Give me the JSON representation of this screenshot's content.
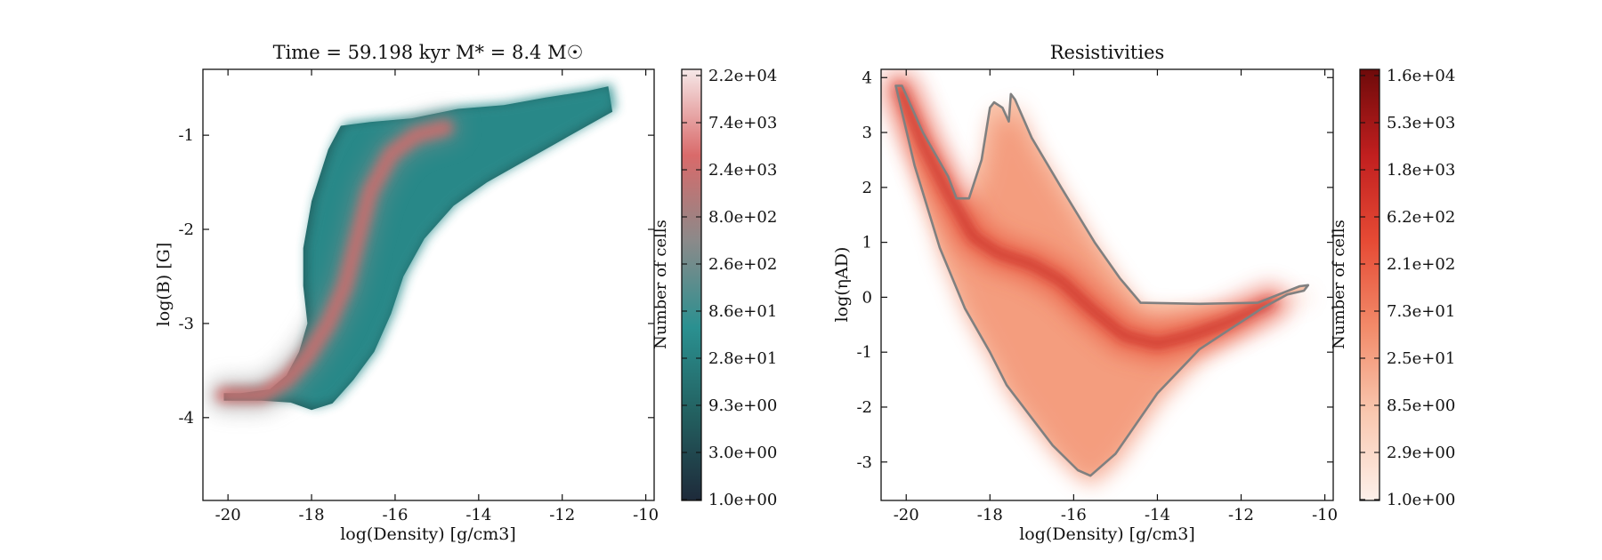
{
  "chart_data": [
    {
      "type": "heatmap",
      "title": "Time = 59.198 kyr    M* = 8.4 M☉",
      "xlabel": "log(Density) [g/cm3]",
      "ylabel": "log(B) [G]",
      "xlim": [
        -20.6,
        -9.8
      ],
      "ylim": [
        -4.88,
        -0.3
      ],
      "x_ticks": [
        -20,
        -18,
        -16,
        -14,
        -12,
        -10
      ],
      "y_ticks": [
        -4,
        -3,
        -2,
        -1
      ],
      "grid": false,
      "colorbar": {
        "label": "Number of cells",
        "ticks": [
          "1.0e+00",
          "3.0e+00",
          "9.3e+00",
          "2.8e+01",
          "8.6e+01",
          "2.6e+02",
          "8.0e+02",
          "2.4e+03",
          "7.4e+03",
          "2.2e+04"
        ],
        "colors": [
          "#1e2a3a",
          "#236060",
          "#2a9090",
          "#8a8a8a",
          "#d96a6a",
          "#f6e8e8"
        ]
      },
      "outline": [
        [
          -20.1,
          -3.74
        ],
        [
          -19.7,
          -3.74
        ],
        [
          -19.0,
          -3.7
        ],
        [
          -18.6,
          -3.55
        ],
        [
          -18.3,
          -3.3
        ],
        [
          -18.1,
          -3.0
        ],
        [
          -18.2,
          -2.6
        ],
        [
          -18.2,
          -2.2
        ],
        [
          -18.0,
          -1.7
        ],
        [
          -17.6,
          -1.15
        ],
        [
          -17.3,
          -0.9
        ],
        [
          -16.6,
          -0.86
        ],
        [
          -15.6,
          -0.82
        ],
        [
          -14.5,
          -0.72
        ],
        [
          -13.4,
          -0.68
        ],
        [
          -12.4,
          -0.6
        ],
        [
          -11.4,
          -0.53
        ],
        [
          -10.9,
          -0.48
        ],
        [
          -10.8,
          -0.75
        ],
        [
          -11.4,
          -0.9
        ],
        [
          -12.2,
          -1.1
        ],
        [
          -13.0,
          -1.3
        ],
        [
          -13.8,
          -1.5
        ],
        [
          -14.6,
          -1.75
        ],
        [
          -15.3,
          -2.1
        ],
        [
          -15.8,
          -2.5
        ],
        [
          -16.1,
          -2.9
        ],
        [
          -16.5,
          -3.3
        ],
        [
          -17.0,
          -3.6
        ],
        [
          -17.5,
          -3.85
        ],
        [
          -18.0,
          -3.92
        ],
        [
          -18.5,
          -3.84
        ],
        [
          -19.2,
          -3.82
        ],
        [
          -20.1,
          -3.82
        ]
      ],
      "ridge": [
        [
          -20.1,
          -3.76
        ],
        [
          -19.2,
          -3.76
        ],
        [
          -18.6,
          -3.6
        ],
        [
          -18.1,
          -3.35
        ],
        [
          -17.6,
          -3.0
        ],
        [
          -17.2,
          -2.6
        ],
        [
          -16.9,
          -2.1
        ],
        [
          -16.6,
          -1.6
        ],
        [
          -16.1,
          -1.2
        ],
        [
          -15.5,
          -1.0
        ],
        [
          -14.8,
          -0.92
        ]
      ]
    },
    {
      "type": "heatmap",
      "title": "Resistivities",
      "xlabel": "log(Density) [g/cm3]",
      "ylabel": "log(ηAD)",
      "xlim": [
        -20.6,
        -9.8
      ],
      "ylim": [
        -3.7,
        4.15
      ],
      "x_ticks": [
        -20,
        -18,
        -16,
        -14,
        -12,
        -10
      ],
      "y_ticks": [
        -3,
        -2,
        -1,
        0,
        1,
        2,
        3,
        4
      ],
      "grid": false,
      "colorbar": {
        "label": "Number of cells",
        "ticks": [
          "1.0e+00",
          "2.9e+00",
          "8.5e+00",
          "2.5e+01",
          "7.3e+01",
          "2.1e+02",
          "6.2e+02",
          "1.8e+03",
          "5.3e+03",
          "1.6e+04"
        ],
        "colors": [
          "#fdf0ea",
          "#f9c8b0",
          "#f28b6a",
          "#e64b35",
          "#c11f1f",
          "#6e0a0a"
        ]
      },
      "outline": [
        [
          -20.25,
          3.85
        ],
        [
          -20.1,
          3.85
        ],
        [
          -19.6,
          3.0
        ],
        [
          -19.0,
          2.2
        ],
        [
          -18.8,
          1.8
        ],
        [
          -18.5,
          1.8
        ],
        [
          -18.2,
          2.5
        ],
        [
          -18.0,
          3.45
        ],
        [
          -17.9,
          3.55
        ],
        [
          -17.7,
          3.45
        ],
        [
          -17.55,
          3.2
        ],
        [
          -17.5,
          3.7
        ],
        [
          -17.4,
          3.6
        ],
        [
          -17.0,
          2.9
        ],
        [
          -16.3,
          2.0
        ],
        [
          -15.5,
          1.0
        ],
        [
          -14.9,
          0.35
        ],
        [
          -14.4,
          -0.1
        ],
        [
          -13.0,
          -0.12
        ],
        [
          -11.6,
          -0.1
        ],
        [
          -10.6,
          0.2
        ],
        [
          -10.4,
          0.22
        ],
        [
          -10.5,
          0.12
        ],
        [
          -10.9,
          0.05
        ],
        [
          -11.5,
          -0.2
        ],
        [
          -12.0,
          -0.45
        ],
        [
          -12.5,
          -0.7
        ],
        [
          -13.0,
          -0.95
        ],
        [
          -13.5,
          -1.35
        ],
        [
          -14.0,
          -1.75
        ],
        [
          -14.5,
          -2.3
        ],
        [
          -15.0,
          -2.85
        ],
        [
          -15.6,
          -3.25
        ],
        [
          -15.9,
          -3.15
        ],
        [
          -16.5,
          -2.7
        ],
        [
          -17.0,
          -2.2
        ],
        [
          -17.6,
          -1.6
        ],
        [
          -18.0,
          -1.0
        ],
        [
          -18.6,
          -0.2
        ],
        [
          -19.2,
          0.9
        ],
        [
          -19.8,
          2.4
        ]
      ],
      "ridge": [
        [
          -20.15,
          3.8
        ],
        [
          -19.6,
          2.8
        ],
        [
          -19.0,
          1.9
        ],
        [
          -18.4,
          1.1
        ],
        [
          -17.8,
          0.8
        ],
        [
          -17.0,
          0.6
        ],
        [
          -16.3,
          0.3
        ],
        [
          -15.6,
          -0.2
        ],
        [
          -14.8,
          -0.7
        ],
        [
          -14.0,
          -0.85
        ],
        [
          -13.2,
          -0.7
        ],
        [
          -12.3,
          -0.45
        ],
        [
          -11.3,
          -0.1
        ]
      ]
    }
  ]
}
